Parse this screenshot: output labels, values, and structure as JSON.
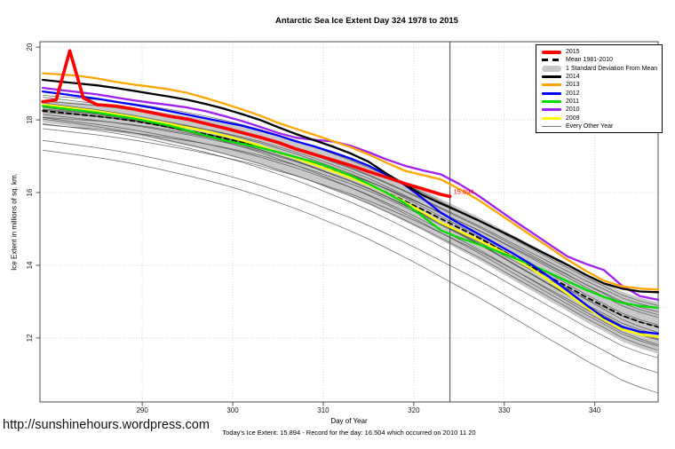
{
  "page": {
    "title": "Antarctic Sea Ice Extent Day 324 1978 to 2015",
    "url_watermark": "http://sunshinehours.wordpress.com",
    "caption": "Today's Ice Extent: 15.894  - Record for the day: 16.504 which occurred on 2010 11 20"
  },
  "chart_data": {
    "type": "line",
    "title": "Antarctic Sea Ice Extent Day 324 1978 to 2015",
    "xlabel": "Day of Year",
    "ylabel": "Ice Extent in millions of sq. km.",
    "xlim": [
      278.7,
      347.0
    ],
    "ylim": [
      10.24,
      20.15
    ],
    "xticks": [
      290,
      300,
      310,
      320,
      330,
      340
    ],
    "yticks": [
      12,
      14,
      16,
      18,
      20
    ],
    "grid": "dotted",
    "grid_color": "#d4d4d4",
    "box_color": "#4d4d4d",
    "vline": {
      "x": 324,
      "color": "#4a4a4a"
    },
    "annotation": {
      "text": "15.894",
      "x": 324,
      "y": 15.894,
      "color": "#ff0000"
    },
    "days": [
      279,
      281,
      283,
      285,
      287,
      289,
      291,
      293,
      295,
      297,
      299,
      301,
      303,
      305,
      307,
      309,
      311,
      313,
      315,
      317,
      319,
      321,
      323,
      325,
      327,
      329,
      331,
      333,
      335,
      337,
      339,
      341,
      343,
      345,
      347
    ],
    "band": {
      "label": "1 Standard Deviation From Mean",
      "color": "#c8c8c8",
      "halfwidth_start": 0.3,
      "halfwidth_end": 0.68
    },
    "series": [
      {
        "key": "mean",
        "name": "Mean 1981-2010",
        "color": "#000000",
        "width": 1.8,
        "dash": "5 4",
        "values": [
          18.25,
          18.2,
          18.15,
          18.1,
          18.04,
          17.97,
          17.89,
          17.8,
          17.71,
          17.61,
          17.5,
          17.38,
          17.25,
          17.1,
          16.95,
          16.78,
          16.6,
          16.42,
          16.22,
          16.0,
          15.77,
          15.53,
          15.28,
          15.03,
          14.78,
          14.51,
          14.23,
          13.96,
          13.68,
          13.41,
          13.13,
          12.88,
          12.62,
          12.44,
          12.3
        ]
      },
      {
        "key": "y2009",
        "name": "2009",
        "color": "#ffff00",
        "width": 2.3,
        "values": [
          18.42,
          18.36,
          18.3,
          18.24,
          18.16,
          18.08,
          17.98,
          17.89,
          17.79,
          17.69,
          17.57,
          17.44,
          17.29,
          17.11,
          16.94,
          16.77,
          16.59,
          16.41,
          16.21,
          15.99,
          15.74,
          15.46,
          15.17,
          14.94,
          14.71,
          14.47,
          14.21,
          13.91,
          13.57,
          13.21,
          12.86,
          12.51,
          12.24,
          12.1,
          12.03
        ]
      },
      {
        "key": "y2011",
        "name": "2011",
        "color": "#00dd00",
        "width": 2.3,
        "values": [
          18.38,
          18.32,
          18.26,
          18.2,
          18.12,
          18.04,
          17.94,
          17.84,
          17.71,
          17.57,
          17.44,
          17.34,
          17.24,
          17.11,
          16.97,
          16.84,
          16.67,
          16.47,
          16.24,
          15.99,
          15.71,
          15.34,
          14.96,
          14.76,
          14.59,
          14.41,
          14.21,
          14.01,
          13.79,
          13.56,
          13.33,
          13.13,
          12.97,
          12.88,
          12.83
        ]
      },
      {
        "key": "y2012",
        "name": "2012",
        "color": "#0000ff",
        "width": 2.3,
        "values": [
          18.78,
          18.72,
          18.65,
          18.58,
          18.5,
          18.42,
          18.34,
          18.24,
          18.14,
          18.04,
          17.94,
          17.84,
          17.71,
          17.57,
          17.41,
          17.27,
          17.11,
          16.94,
          16.74,
          16.49,
          16.21,
          15.84,
          15.45,
          15.15,
          14.88,
          14.6,
          14.32,
          14.02,
          13.68,
          13.3,
          12.92,
          12.56,
          12.31,
          12.17,
          12.12
        ]
      },
      {
        "key": "y2010",
        "name": "2010",
        "color": "#a020f0",
        "width": 2.3,
        "values": [
          18.88,
          18.82,
          18.76,
          18.7,
          18.62,
          18.54,
          18.47,
          18.41,
          18.34,
          18.24,
          18.11,
          17.97,
          17.81,
          17.64,
          17.51,
          17.45,
          17.41,
          17.29,
          17.11,
          16.91,
          16.74,
          16.61,
          16.5,
          16.24,
          15.94,
          15.59,
          15.24,
          14.91,
          14.57,
          14.24,
          14.04,
          13.87,
          13.44,
          13.15,
          13.05
        ]
      },
      {
        "key": "y2013",
        "name": "2013",
        "color": "#ffa500",
        "width": 2.3,
        "values": [
          19.28,
          19.25,
          19.21,
          19.14,
          19.05,
          18.97,
          18.91,
          18.84,
          18.74,
          18.6,
          18.45,
          18.29,
          18.12,
          17.92,
          17.75,
          17.59,
          17.42,
          17.25,
          17.05,
          16.82,
          16.6,
          16.48,
          16.36,
          16.1,
          15.82,
          15.49,
          15.15,
          14.82,
          14.49,
          14.15,
          13.85,
          13.58,
          13.42,
          13.36,
          13.33
        ]
      },
      {
        "key": "y2014",
        "name": "2014",
        "color": "#000000",
        "width": 2.3,
        "values": [
          19.1,
          19.05,
          19.0,
          18.95,
          18.88,
          18.8,
          18.72,
          18.64,
          18.55,
          18.44,
          18.31,
          18.16,
          18.0,
          17.8,
          17.61,
          17.44,
          17.27,
          17.08,
          16.85,
          16.52,
          16.22,
          15.93,
          15.7,
          15.48,
          15.25,
          15.01,
          14.77,
          14.51,
          14.26,
          14.01,
          13.74,
          13.5,
          13.36,
          13.28,
          13.26
        ]
      },
      {
        "key": "y2015",
        "name": "2015",
        "color": "#ff0000",
        "width": 3.6,
        "days": [
          279,
          280.5,
          282,
          283.5,
          285,
          287,
          289,
          291,
          293,
          295,
          297,
          299,
          301,
          303,
          305,
          307,
          309,
          311,
          313,
          315,
          317,
          319,
          321,
          323,
          324
        ],
        "values": [
          18.5,
          18.55,
          19.9,
          18.6,
          18.42,
          18.38,
          18.3,
          18.2,
          18.1,
          18.02,
          17.9,
          17.78,
          17.65,
          17.52,
          17.38,
          17.2,
          17.05,
          16.9,
          16.75,
          16.58,
          16.42,
          16.25,
          16.1,
          15.95,
          15.894
        ]
      }
    ],
    "gray_lines": {
      "label": "Every Other Year",
      "color": "#4d4d4d",
      "width": 0.75,
      "offsets": [
        [
          0.4,
          0.58,
          0.5,
          0.05
        ],
        [
          0.32,
          0.28,
          2.1,
          0.06
        ],
        [
          0.26,
          -0.12,
          4.0,
          0.05
        ],
        [
          0.2,
          0.46,
          1.2,
          0.07
        ],
        [
          0.15,
          -0.34,
          3.3,
          0.05
        ],
        [
          0.1,
          0.12,
          5.1,
          0.06
        ],
        [
          0.06,
          -0.55,
          0.8,
          0.05
        ],
        [
          0.0,
          0.22,
          2.7,
          0.07
        ],
        [
          -0.05,
          -0.26,
          4.5,
          0.05
        ],
        [
          -0.1,
          0.36,
          1.7,
          0.06
        ],
        [
          -0.15,
          -0.46,
          3.9,
          0.05
        ],
        [
          -0.2,
          0.02,
          0.3,
          0.07
        ],
        [
          -0.26,
          -0.68,
          2.4,
          0.05
        ],
        [
          -0.32,
          -0.15,
          4.8,
          0.06
        ],
        [
          -0.4,
          -0.88,
          1.0,
          0.05
        ],
        [
          -0.5,
          -0.38,
          3.0,
          0.06
        ],
        [
          -0.85,
          -1.3,
          2.0,
          0.04
        ],
        [
          -1.1,
          -1.82,
          0.6,
          0.03
        ]
      ]
    },
    "legend": {
      "items": [
        {
          "label": "2015",
          "swatch": "thick",
          "color": "#ff0000"
        },
        {
          "label": "Mean 1981-2010",
          "swatch": "dash",
          "color": "#000000"
        },
        {
          "label": "1 Standard Deviation From Mean",
          "swatch": "band",
          "color": "#c8c8c8"
        },
        {
          "label": "2014",
          "swatch": "line",
          "color": "#000000"
        },
        {
          "label": "2013",
          "swatch": "line",
          "color": "#ffa500"
        },
        {
          "label": "2012",
          "swatch": "line",
          "color": "#0000ff"
        },
        {
          "label": "2011",
          "swatch": "line",
          "color": "#00dd00"
        },
        {
          "label": "2010",
          "swatch": "line",
          "color": "#a020f0"
        },
        {
          "label": "2009",
          "swatch": "line",
          "color": "#ffff00"
        },
        {
          "label": "Every Other Year",
          "swatch": "thin",
          "color": "#777777"
        }
      ]
    }
  }
}
